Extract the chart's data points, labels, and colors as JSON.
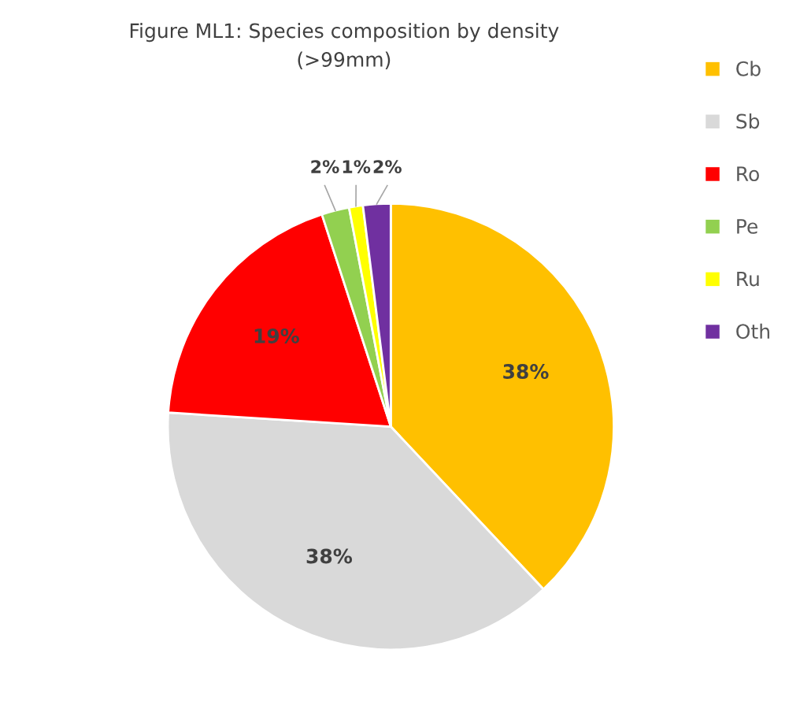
{
  "chart_data": {
    "type": "pie",
    "title": "Figure ML1: Species composition by density",
    "subtitle": "(>99mm)",
    "categories": [
      "Cb",
      "Sb",
      "Ro",
      "Pe",
      "Ru",
      "Oth"
    ],
    "values": [
      38,
      38,
      19,
      2,
      1,
      2
    ],
    "value_labels": [
      "38%",
      "38%",
      "19%",
      "2%",
      "1%",
      "2%"
    ],
    "colors": [
      "#ffc000",
      "#d9d9d9",
      "#ff0000",
      "#92d050",
      "#ffff00",
      "#7030a0"
    ],
    "legend": "right"
  }
}
